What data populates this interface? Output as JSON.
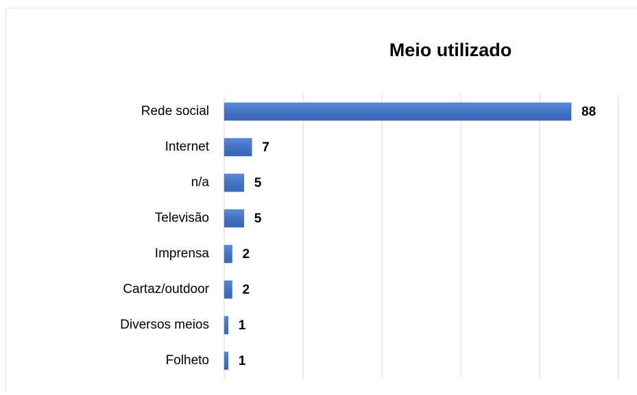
{
  "chart_data": {
    "type": "bar",
    "orientation": "horizontal",
    "title": "Meio utilizado",
    "categories": [
      "Rede social",
      "Internet",
      "n/a",
      "Televisão",
      "Imprensa",
      "Cartaz/outdoor",
      "Diversos meios",
      "Folheto"
    ],
    "values": [
      88,
      7,
      5,
      5,
      2,
      2,
      1,
      1
    ],
    "color": "#4472c4",
    "xlim": [
      0,
      100
    ],
    "xticks": [
      0,
      20,
      40,
      60,
      80,
      100
    ],
    "grid": true
  }
}
